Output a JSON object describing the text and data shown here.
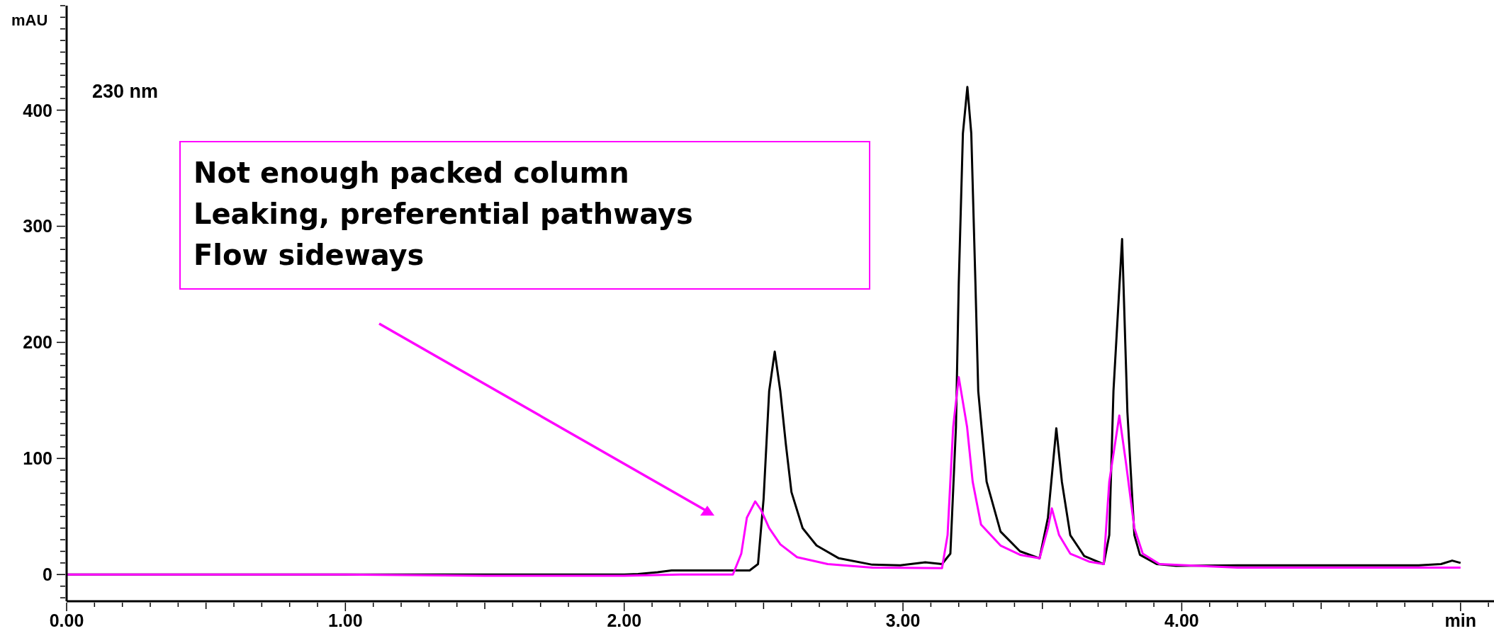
{
  "chart_data": {
    "type": "line",
    "ylabel": "mAU",
    "annotations": [
      "230 nm",
      "Not enough packed column",
      "Leaking, preferential pathways",
      "Flow sideways"
    ],
    "xlim": [
      0,
      5.12
    ],
    "ylim": [
      -23,
      490
    ],
    "xticks": [
      {
        "value": 0,
        "label": "0.00"
      },
      {
        "value": 1,
        "label": "1.00"
      },
      {
        "value": 2,
        "label": "2.00"
      },
      {
        "value": 3,
        "label": "3.00"
      },
      {
        "value": 4,
        "label": "4.00"
      },
      {
        "value": 5,
        "label": "min"
      }
    ],
    "yticks": [
      0,
      100,
      200,
      300,
      400
    ],
    "series": [
      {
        "color": "#000000",
        "x": [
          0,
          0.5,
          1.0,
          1.5,
          2.0,
          2.05,
          2.12,
          2.17,
          2.25,
          2.45,
          2.48,
          2.5,
          2.52,
          2.54,
          2.56,
          2.58,
          2.6,
          2.64,
          2.69,
          2.77,
          2.89,
          2.99,
          3.08,
          3.14,
          3.17,
          3.19,
          3.2,
          3.215,
          3.231,
          3.245,
          3.26,
          3.27,
          3.3,
          3.35,
          3.42,
          3.49,
          3.52,
          3.55,
          3.57,
          3.6,
          3.65,
          3.72,
          3.74,
          3.755,
          3.786,
          3.805,
          3.83,
          3.85,
          3.91,
          3.98,
          4.2,
          4.5,
          4.85,
          4.93,
          4.97,
          5.0
        ],
        "values": [
          0,
          0,
          0,
          0,
          0,
          0.5,
          2,
          3.5,
          3.5,
          3.5,
          9,
          65,
          158,
          192,
          158,
          112,
          71,
          40,
          25,
          14,
          8.5,
          8,
          10.5,
          9,
          18,
          127,
          250,
          380,
          420,
          380,
          250,
          158,
          80,
          37,
          20,
          14,
          49,
          126,
          80,
          34,
          16,
          9,
          34,
          158,
          289,
          140,
          34,
          17,
          9,
          7.5,
          8,
          8,
          8,
          9,
          12,
          10
        ]
      },
      {
        "color": "#ff00ff",
        "x": [
          0,
          0.5,
          1.0,
          1.5,
          1.7,
          2.0,
          2.2,
          2.39,
          2.42,
          2.44,
          2.47,
          2.49,
          2.52,
          2.56,
          2.62,
          2.73,
          2.89,
          3.14,
          3.16,
          3.18,
          3.2,
          3.23,
          3.25,
          3.28,
          3.35,
          3.42,
          3.49,
          3.52,
          3.534,
          3.56,
          3.6,
          3.67,
          3.72,
          3.74,
          3.776,
          3.8,
          3.83,
          3.86,
          3.92,
          4.2,
          4.6,
          5.0
        ],
        "values": [
          0,
          0,
          0,
          -1,
          -1,
          -1,
          0,
          0,
          18,
          49,
          63,
          56,
          40,
          26,
          15,
          9,
          6,
          5.5,
          34,
          127,
          170,
          127,
          80,
          43,
          25,
          17,
          14,
          40,
          57,
          34,
          18,
          11,
          9,
          80,
          137,
          96,
          40,
          18,
          9,
          6,
          6,
          6
        ]
      }
    ]
  }
}
